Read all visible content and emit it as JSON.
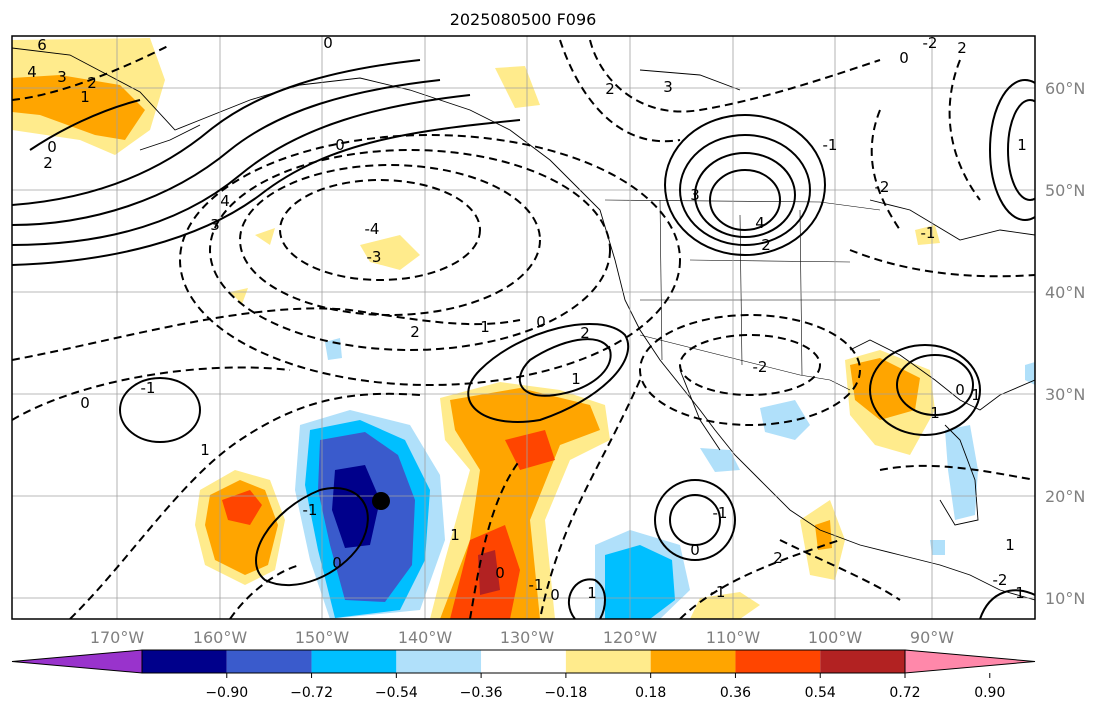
{
  "title": "2025080500 F096",
  "map": {
    "lon_labels": [
      "170°W",
      "160°W",
      "150°W",
      "140°W",
      "130°W",
      "120°W",
      "110°W",
      "100°W",
      "90°W"
    ],
    "lat_labels": [
      "60°N",
      "50°N",
      "40°N",
      "30°N",
      "20°N",
      "10°N"
    ],
    "contour_labels": [
      "6",
      "4",
      "3",
      "1",
      "2",
      "0",
      "2",
      "0",
      "4",
      "3",
      "-4",
      "-3",
      "2",
      "1",
      "0",
      "2",
      "1",
      "0",
      "2",
      "3",
      "4",
      "2",
      "3",
      "-2",
      "-1",
      "-2",
      "0",
      "-1",
      "1",
      "-1",
      "0",
      "1",
      "0",
      "-1",
      "0",
      "1",
      "-1",
      "0",
      "-1",
      "2",
      "1",
      "-2",
      "1",
      "-1",
      "0",
      "1",
      "1",
      "0",
      "-2",
      "2",
      "1"
    ],
    "marker": "storm-center-dot"
  },
  "colorbar": {
    "ticks": [
      "−0.90",
      "−0.72",
      "−0.54",
      "−0.36",
      "−0.18",
      "0.18",
      "0.36",
      "0.54",
      "0.72",
      "0.90"
    ],
    "colors": [
      "#9933cc",
      "#00008b",
      "#3a5bcc",
      "#00bfff",
      "#b0e0fa",
      "#ffffff",
      "#ffeb8c",
      "#ffa500",
      "#ff4500",
      "#b22222",
      "#ff88aa"
    ]
  }
}
